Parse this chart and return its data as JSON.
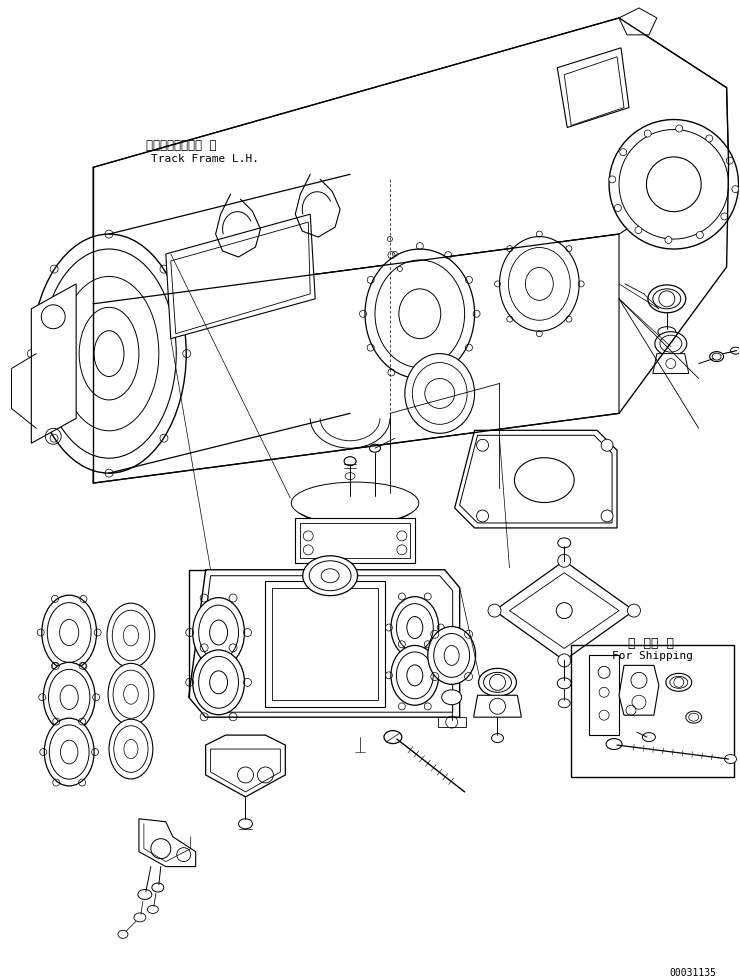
{
  "background_color": "#ffffff",
  "line_color": "#000000",
  "line_width": 0.7,
  "fig_width": 7.4,
  "fig_height": 9.8,
  "dpi": 100,
  "label_japanese": "トラックフレーム  左",
  "label_english": "Track Frame L.H.",
  "shipping_japanese": "運  搬部  品",
  "shipping_english": "For Shipping",
  "part_number": "00031135"
}
